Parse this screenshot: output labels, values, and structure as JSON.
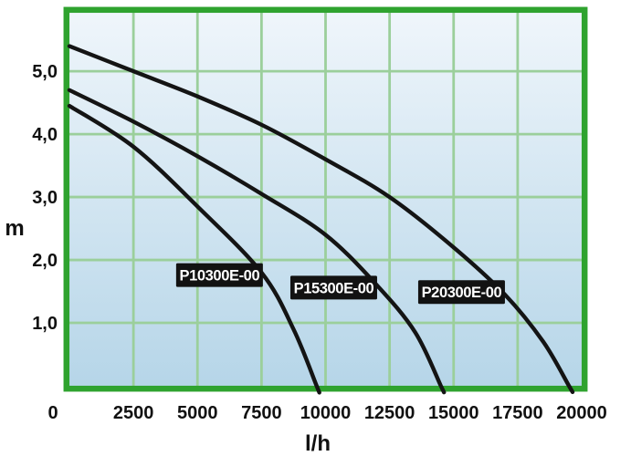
{
  "colors": {
    "outer_background": "#FFFFFF",
    "frame_green": "#2FA32F",
    "grid_green": "#9BCF9B",
    "plot_bg_top": "#F0F6FB",
    "plot_bg_bottom": "#B5D5E8",
    "curve_black": "#141414",
    "axis_text": "#111111",
    "label_box_bg": "#121212",
    "label_box_text": "#FFFFFF"
  },
  "chart_data": {
    "type": "line",
    "title": "",
    "xlabel": "l/h",
    "ylabel": "m",
    "xlim": [
      0,
      20000
    ],
    "ylim": [
      0,
      5.93
    ],
    "grid": true,
    "x_ticks": [
      0,
      2500,
      5000,
      7500,
      10000,
      12500,
      15000,
      17500,
      20000
    ],
    "x_tick_labels": [
      "0",
      "2500",
      "5000",
      "7500",
      "10000",
      "12500",
      "15000",
      "17500",
      "20000"
    ],
    "y_ticks": [
      1,
      2,
      3,
      4,
      5
    ],
    "y_tick_labels": [
      "1,0",
      "2,0",
      "3,0",
      "4,0",
      "5,0"
    ],
    "series": [
      {
        "name": "P10300E-00",
        "points": [
          [
            0,
            4.45
          ],
          [
            2500,
            3.8
          ],
          [
            5000,
            2.85
          ],
          [
            7500,
            1.8
          ],
          [
            8750,
            0.9
          ],
          [
            9650,
            0
          ]
        ],
        "label_at": {
          "q": 5860,
          "h": 1.76
        }
      },
      {
        "name": "P15300E-00",
        "points": [
          [
            0,
            4.7
          ],
          [
            2500,
            4.2
          ],
          [
            5000,
            3.65
          ],
          [
            7500,
            3.05
          ],
          [
            10000,
            2.4
          ],
          [
            12000,
            1.6
          ],
          [
            13500,
            0.85
          ],
          [
            14500,
            0
          ]
        ],
        "label_at": {
          "q": 10320,
          "h": 1.56
        }
      },
      {
        "name": "P20300E-00",
        "points": [
          [
            0,
            5.4
          ],
          [
            2500,
            5.0
          ],
          [
            5000,
            4.6
          ],
          [
            7500,
            4.15
          ],
          [
            10000,
            3.6
          ],
          [
            12500,
            3.0
          ],
          [
            15000,
            2.2
          ],
          [
            17000,
            1.45
          ],
          [
            18500,
            0.7
          ],
          [
            19500,
            0
          ]
        ],
        "label_at": {
          "q": 15310,
          "h": 1.49
        }
      }
    ]
  }
}
